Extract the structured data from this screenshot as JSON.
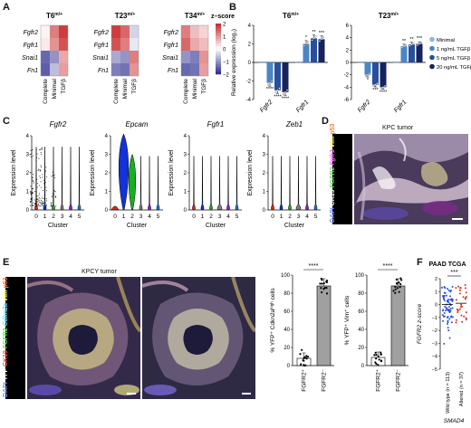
{
  "panels": {
    "A": {
      "letter": "A",
      "heatmaps": [
        {
          "title": "T6",
          "sup": "m/+",
          "cells": [
            [
              0.1,
              1.2,
              1.8
            ],
            [
              0.2,
              1.0,
              1.6
            ],
            [
              -1.4,
              -1.0,
              0.8
            ],
            [
              -1.5,
              -0.6,
              0.9
            ]
          ]
        },
        {
          "title": "T23",
          "sup": "m/+",
          "cells": [
            [
              1.8,
              1.4,
              -0.4
            ],
            [
              1.6,
              1.2,
              -0.2
            ],
            [
              -0.8,
              -1.0,
              1.2
            ],
            [
              -1.2,
              -1.3,
              1.0
            ]
          ]
        },
        {
          "title": "T34",
          "sup": "m/+",
          "cells": [
            [
              1.2,
              0.6,
              0.4
            ],
            [
              1.4,
              0.8,
              0.6
            ],
            [
              -1.0,
              -1.2,
              1.0
            ],
            [
              -1.4,
              -1.3,
              0.9
            ]
          ]
        }
      ],
      "rows": [
        "Fgfr2",
        "Fgfr1",
        "Snai1",
        "Fn1"
      ],
      "cols": [
        "Complete",
        "Minimal",
        "TGFβ"
      ],
      "legend": {
        "title": "z–score",
        "ticks": [
          "2",
          "1",
          "0",
          "−1",
          "−2"
        ]
      }
    },
    "B": {
      "letter": "B",
      "legend": [
        "Minimal",
        "1 ng/mL TGFβ",
        "5 ng/mL TGFβ",
        "20 ng/mL TGFβ"
      ],
      "colors": [
        "#8fb6dd",
        "#4a86c5",
        "#274f9c",
        "#16235e"
      ],
      "plots": [
        {
          "title": "T6",
          "sup": "m/+",
          "genes": [
            "Fgfr2",
            "Fgfr1"
          ],
          "values": [
            [
              0,
              -2.2,
              -3.0,
              -3.2
            ],
            [
              0,
              2.0,
              2.6,
              2.5
            ]
          ],
          "sig": [
            [
              "",
              "****",
              "****",
              "****"
            ],
            [
              "",
              "*",
              "**",
              "***"
            ]
          ],
          "ylim": [
            -4,
            4
          ],
          "yticks": [
            "4",
            "2",
            "0",
            "-2",
            "-4"
          ]
        },
        {
          "title": "T23",
          "sup": "m/+",
          "genes": [
            "Fgfr2",
            "Fgfr1"
          ],
          "values": [
            [
              0,
              -2.0,
              -3.6,
              -4.0
            ],
            [
              0,
              2.6,
              2.9,
              3.0
            ]
          ],
          "sig": [
            [
              "",
              "*",
              "***",
              "****"
            ],
            [
              "",
              "**",
              "**",
              "***"
            ]
          ],
          "ylim": [
            -6,
            6
          ],
          "yticks": [
            "6",
            "4",
            "2",
            "0",
            "-2",
            "-4",
            "-6"
          ]
        }
      ],
      "ylabel": "Relative expression (log₂)"
    },
    "C": {
      "letter": "C",
      "ylabel": "Expression level",
      "xlabel": "Cluster",
      "xticks": [
        "0",
        "1",
        "2",
        "3",
        "4",
        "5"
      ],
      "yticks": [
        "0",
        "1",
        "2",
        "3",
        "4"
      ],
      "plots": [
        {
          "gene": "Fgfr2"
        },
        {
          "gene": "Epcam"
        },
        {
          "gene": "Fgfr1"
        },
        {
          "gene": "Zeb1"
        }
      ]
    },
    "D": {
      "letter": "D",
      "title": "KPC tumor",
      "stain": [
        "DAPI",
        "CK19",
        "FGFR2",
        "Fgfr1",
        "Vim",
        "p53"
      ],
      "stain_colors": [
        "#7b8cff",
        "#ffffff",
        "#66dd55",
        "#ff66ff",
        "#ffff66",
        "#ff7a3a"
      ]
    },
    "E": {
      "letter": "E",
      "title": "KPCY tumor",
      "stain": [
        "DAPI",
        "YFP",
        "CK19",
        "FGFR2",
        "Cdkn2a",
        "Vim",
        "p53"
      ],
      "stain_colors": [
        "#7b8cff",
        "#ffffff",
        "#ff5555",
        "#66dd55",
        "#66e0ff",
        "#ffff66",
        "#ff7a3a"
      ],
      "bar_plots": [
        {
          "ylabel": "% YFP⁺ Cdkn2aʰⁱᵍʰ cells",
          "categories": [
            "FGFR2⁺",
            "FGFR2⁻"
          ],
          "values": [
            8,
            88
          ],
          "sig": "****",
          "yticks": [
            "100",
            "80",
            "60",
            "40",
            "20",
            "0"
          ]
        },
        {
          "ylabel": "% YFP⁺ Vim⁺ cells",
          "categories": [
            "FGFR2⁺",
            "FGFR2⁻"
          ],
          "values": [
            9,
            88
          ],
          "sig": "****",
          "yticks": [
            "100",
            "80",
            "60",
            "40",
            "20",
            "0"
          ]
        }
      ]
    },
    "F": {
      "letter": "F",
      "title": "PAAD TCGA",
      "ylabel": "FGFR2 z-score",
      "categories": [
        "Wild type (n = 113)",
        "Altered (n = 37)"
      ],
      "group_label": "SMAD4",
      "sig": "***",
      "yticks": [
        "2",
        "1",
        "0",
        "−1",
        "−2",
        "−3",
        "−4",
        "−5"
      ],
      "colors": [
        "#2b50d8",
        "#d8302a"
      ]
    }
  },
  "chart_data": [
    {
      "type": "bar",
      "panel": "B-T6",
      "categories": [
        "Fgfr2",
        "Fgfr1"
      ],
      "series": [
        {
          "name": "Minimal",
          "values": [
            0,
            0
          ]
        },
        {
          "name": "1 ng/mL TGFβ",
          "values": [
            -2.2,
            2.0
          ]
        },
        {
          "name": "5 ng/mL TGFβ",
          "values": [
            -3.0,
            2.6
          ]
        },
        {
          "name": "20 ng/mL TGFβ",
          "values": [
            -3.2,
            2.5
          ]
        }
      ],
      "ylabel": "Relative expression (log₂)",
      "ylim": [
        -4,
        4
      ]
    },
    {
      "type": "bar",
      "panel": "B-T23",
      "categories": [
        "Fgfr2",
        "Fgfr1"
      ],
      "series": [
        {
          "name": "Minimal",
          "values": [
            0,
            0
          ]
        },
        {
          "name": "1 ng/mL TGFβ",
          "values": [
            -2.0,
            2.6
          ]
        },
        {
          "name": "5 ng/mL TGFβ",
          "values": [
            -3.6,
            2.9
          ]
        },
        {
          "name": "20 ng/mL TGFβ",
          "values": [
            -4.0,
            3.0
          ]
        }
      ],
      "ylim": [
        -6,
        6
      ]
    },
    {
      "type": "bar",
      "panel": "E-left",
      "categories": [
        "FGFR2⁺",
        "FGFR2⁻"
      ],
      "values": [
        8,
        88
      ],
      "ylim": [
        0,
        100
      ]
    },
    {
      "type": "bar",
      "panel": "E-right",
      "categories": [
        "FGFR2⁺",
        "FGFR2⁻"
      ],
      "values": [
        9,
        88
      ],
      "ylim": [
        0,
        100
      ]
    },
    {
      "type": "scatter",
      "panel": "F",
      "categories": [
        "Wild type (n = 113)",
        "Altered (n = 37)"
      ],
      "median": [
        0.0,
        0.1
      ],
      "ylim": [
        -5,
        2
      ],
      "ylabel": "FGFR2 z-score"
    }
  ]
}
